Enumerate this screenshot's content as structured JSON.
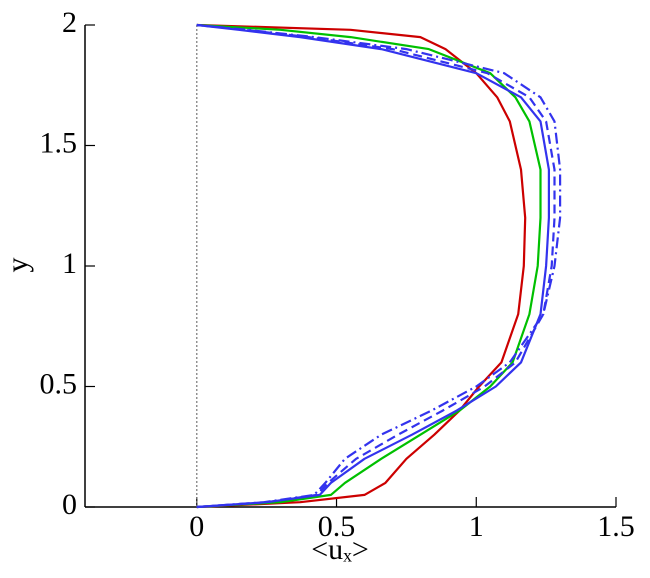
{
  "chart_data": {
    "type": "line",
    "xlabel": "<uₓ>",
    "ylabel": "y",
    "y": [
      0,
      0.02,
      0.05,
      0.1,
      0.2,
      0.3,
      0.4,
      0.5,
      0.6,
      0.8,
      1.0,
      1.2,
      1.4,
      1.6,
      1.7,
      1.8,
      1.9,
      1.95,
      1.98,
      2
    ],
    "series": [
      {
        "color": "#cc0000",
        "dash": "solid",
        "values": [
          0,
          0.37,
          0.6,
          0.675,
          0.75,
          0.85,
          0.94,
          1.01,
          1.09,
          1.15,
          1.17,
          1.175,
          1.16,
          1.12,
          1.075,
          1.0,
          0.89,
          0.8,
          0.55,
          0
        ]
      },
      {
        "color": "#00c000",
        "dash": "solid",
        "values": [
          0,
          0.3,
          0.48,
          0.53,
          0.66,
          0.8,
          0.94,
          1.05,
          1.13,
          1.19,
          1.22,
          1.23,
          1.23,
          1.19,
          1.14,
          1.05,
          0.83,
          0.55,
          0.3,
          0
        ]
      },
      {
        "color": "#3333ee",
        "dash": "solid",
        "values": [
          0,
          0.25,
          0.44,
          0.48,
          0.6,
          0.77,
          0.93,
          1.07,
          1.16,
          1.23,
          1.25,
          1.26,
          1.26,
          1.23,
          1.16,
          1.0,
          0.66,
          0.37,
          0.15,
          0
        ]
      },
      {
        "color": "#3333ee",
        "dash": "dashed",
        "values": [
          0,
          0.25,
          0.43,
          0.47,
          0.57,
          0.72,
          0.88,
          1.03,
          1.14,
          1.24,
          1.27,
          1.28,
          1.28,
          1.25,
          1.19,
          1.04,
          0.7,
          0.4,
          0.17,
          0
        ]
      },
      {
        "color": "#3333ee",
        "dash": "dashdot",
        "values": [
          0,
          0.24,
          0.42,
          0.46,
          0.53,
          0.66,
          0.84,
          1.0,
          1.12,
          1.24,
          1.28,
          1.3,
          1.3,
          1.28,
          1.23,
          1.1,
          0.75,
          0.42,
          0.18,
          0
        ]
      }
    ],
    "xlim": [
      -0.4,
      1.5
    ],
    "xticks": [
      0,
      0.5,
      1,
      1.5
    ],
    "ylim": [
      0,
      2
    ],
    "yticks": [
      0,
      0.5,
      1,
      1.5,
      2
    ],
    "vline": 0
  }
}
